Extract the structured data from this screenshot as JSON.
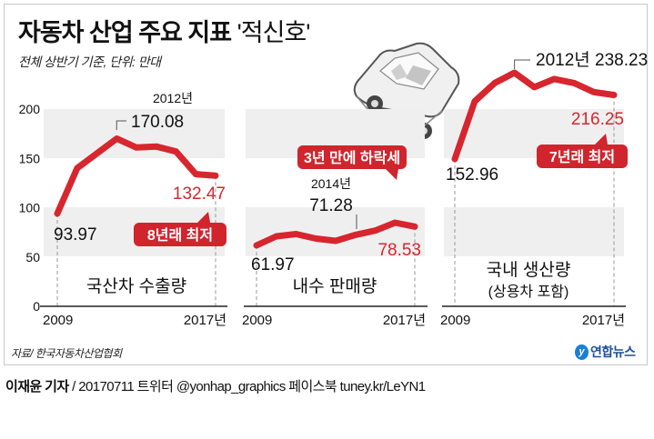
{
  "header": {
    "title_main": "자동차 산업 주요 지표",
    "title_highlight": "'적신호'",
    "subtitle": "전체 상반기 기준, 단위: 만대"
  },
  "colors": {
    "line": "#d7262e",
    "band": "#efeff0",
    "callout_bg": "#d0252d",
    "callout_text": "#ffffff",
    "accent_text": "#d7262e",
    "logo": "#1d4f9a"
  },
  "icons": {
    "car": "car-illustration-icon",
    "logo": "yonhap-logo-icon"
  },
  "chart_data": [
    {
      "type": "line",
      "title": "국산차 수출량",
      "x": [
        2009,
        2010,
        2011,
        2012,
        2013,
        2014,
        2015,
        2016,
        2017
      ],
      "x_tick_labels": [
        "2009",
        "2017년"
      ],
      "y_ticks": [
        0,
        50,
        100,
        150,
        200
      ],
      "y_tick_labels": [
        "0",
        "50",
        "100",
        "150",
        "200"
      ],
      "ylim": [
        0,
        200
      ],
      "values": [
        93.97,
        140,
        155,
        170.08,
        161,
        162,
        157,
        134,
        132.47
      ],
      "annotations": {
        "start_value": "93.97",
        "peak_year": "2012년",
        "peak_value": "170.08",
        "end_value": "132.47",
        "callout": "8년래 최저"
      }
    },
    {
      "type": "line",
      "title": "내수 판매량",
      "x": [
        2009,
        2010,
        2011,
        2012,
        2013,
        2014,
        2015,
        2016,
        2017
      ],
      "x_tick_labels": [
        "2009",
        "2017년"
      ],
      "ylim": [
        0,
        200
      ],
      "values": [
        61.97,
        70,
        72,
        68,
        66,
        71.28,
        75,
        82,
        78.53
      ],
      "annotations": {
        "start_value": "61.97",
        "mid_year": "2014년",
        "mid_value": "71.28",
        "end_value": "78.53",
        "callout": "3년 만에 하락세"
      }
    },
    {
      "type": "line",
      "title": "국내 생산량",
      "subtitle": "(상용차 포함)",
      "x": [
        2009,
        2010,
        2011,
        2012,
        2013,
        2014,
        2015,
        2016,
        2017
      ],
      "x_tick_labels": [
        "2009",
        "2017년"
      ],
      "ylim": [
        0,
        250
      ],
      "values": [
        152.96,
        210,
        228,
        238.23,
        224,
        232,
        228,
        219,
        216.25
      ],
      "annotations": {
        "start_value": "152.96",
        "peak_label": "2012년 238.23",
        "end_value": "216.25",
        "callout": "7년래 최저"
      }
    }
  ],
  "footer": {
    "source": "자료/ 한국자동차산업협회",
    "logo_text": "연합뉴스",
    "author": "이재윤 기자",
    "credit_rest": " / 20170711   트위터 @yonhap_graphics  페이스북 tuney.kr/LeYN1"
  }
}
